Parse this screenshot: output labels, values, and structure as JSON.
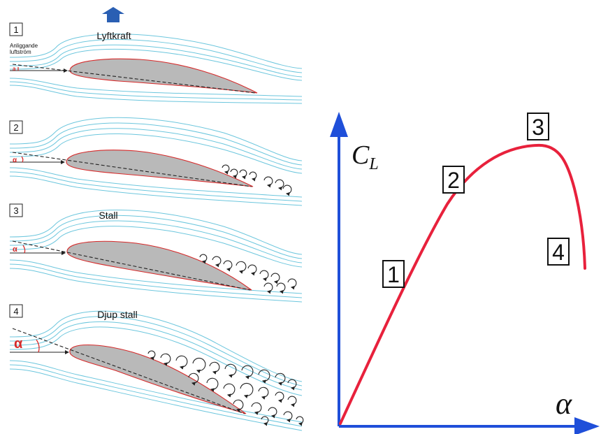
{
  "panels": [
    {
      "number": "1",
      "title": "",
      "alpha_label": "a"
    },
    {
      "number": "2",
      "title": "",
      "alpha_label": "α"
    },
    {
      "number": "3",
      "title": "Stall",
      "alpha_label": "α"
    },
    {
      "number": "4",
      "title": "Djup stall",
      "alpha_label": "α"
    }
  ],
  "labels": {
    "lift": "Lyftkraft",
    "attached_flow_line1": "Anliggande",
    "attached_flow_line2": "luftström"
  },
  "graph": {
    "y_axis_symbol": "C",
    "y_axis_subscript": "L",
    "x_axis_symbol": "α",
    "stage_markers": [
      "1",
      "2",
      "3",
      "4"
    ]
  },
  "colors": {
    "streamline": "#6cc6dd",
    "airfoil_fill": "#b9b9b9",
    "airfoil_outline": "#d62a2a",
    "axis": "#1f4fd9",
    "curve": "#e8213c",
    "lift_arrow": "#2a5fb3"
  }
}
